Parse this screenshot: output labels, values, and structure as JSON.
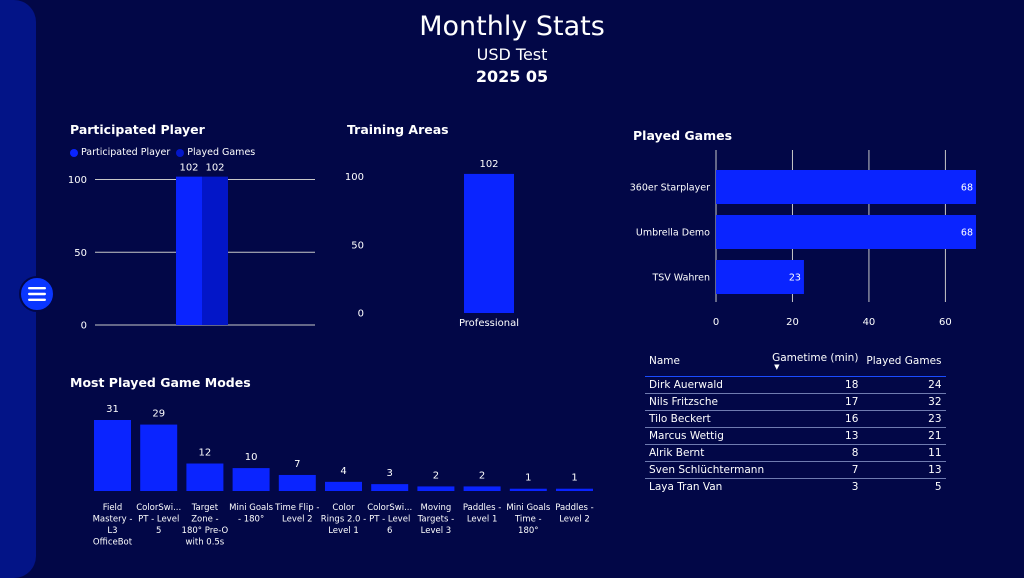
{
  "header": {
    "title": "Monthly Stats",
    "subtitle": "USD Test",
    "period": "2025 05"
  },
  "colors": {
    "background": "#020747",
    "sidepanel": "#031487",
    "bar_primary": "#0a24ff",
    "bar_secondary": "#0316c8",
    "grid": "#c8c8c8"
  },
  "icons": {
    "menu": "hamburger-menu-icon"
  },
  "chart_data": [
    {
      "id": "participated",
      "type": "bar",
      "title": "Participated Player",
      "categories": [
        ""
      ],
      "series": [
        {
          "name": "Participated Player",
          "values": [
            102
          ],
          "color": "#0a24ff"
        },
        {
          "name": "Played Games",
          "values": [
            102
          ],
          "color": "#0316c8"
        }
      ],
      "yticks": [
        0,
        50,
        100
      ],
      "ylim": [
        0,
        110
      ],
      "grid": true,
      "legend": "top-left"
    },
    {
      "id": "training",
      "type": "bar",
      "title": "Training Areas",
      "categories": [
        "Professional"
      ],
      "values": [
        102
      ],
      "yticks": [
        0,
        50,
        100
      ],
      "ylim": [
        0,
        110
      ],
      "grid": false
    },
    {
      "id": "played_games",
      "type": "bar",
      "orientation": "horizontal",
      "title": "Played Games",
      "categories": [
        "360er Starplayer",
        "Umbrella Demo",
        "TSV Wahren"
      ],
      "values": [
        68,
        68,
        23
      ],
      "xticks": [
        0,
        20,
        40,
        60
      ],
      "xlim": [
        0,
        68
      ],
      "grid": true
    },
    {
      "id": "game_modes",
      "type": "bar",
      "title": "Most Played Game Modes",
      "categories": [
        [
          "Field",
          "Mastery -",
          "L3",
          "OfficeBot"
        ],
        [
          "ColorSwi...",
          "PT - Level",
          "5"
        ],
        [
          "Target",
          "Zone -",
          "180° Pre-O",
          "with 0.5s"
        ],
        [
          "Mini Goals",
          "- 180°"
        ],
        [
          "Time Flip -",
          "Level 2"
        ],
        [
          "Color",
          "Rings 2.0 -",
          "Level 1"
        ],
        [
          "ColorSwi...",
          "PT - Level",
          "6"
        ],
        [
          "Moving",
          "Targets -",
          "Level 3"
        ],
        [
          "Paddles -",
          "Level 1"
        ],
        [
          "Mini Goals",
          "Time -",
          "180°"
        ],
        [
          "Paddles -",
          "Level 2"
        ]
      ],
      "values": [
        31,
        29,
        12,
        10,
        7,
        4,
        3,
        2,
        2,
        1,
        1
      ],
      "ylim": [
        0,
        31
      ]
    }
  ],
  "table": {
    "columns": [
      "Name",
      "Gametime (min)",
      "Played Games"
    ],
    "sort_indicator": "▼",
    "rows": [
      [
        "Dirk Auerwald",
        "18",
        "24"
      ],
      [
        "Nils Fritzsche",
        "17",
        "32"
      ],
      [
        "Tilo Beckert",
        "16",
        "23"
      ],
      [
        "Marcus Wettig",
        "13",
        "21"
      ],
      [
        "Alrik Bernt",
        "8",
        "11"
      ],
      [
        "Sven Schlüchtermann",
        "7",
        "13"
      ],
      [
        "Laya Tran Van",
        "3",
        "5"
      ]
    ]
  }
}
